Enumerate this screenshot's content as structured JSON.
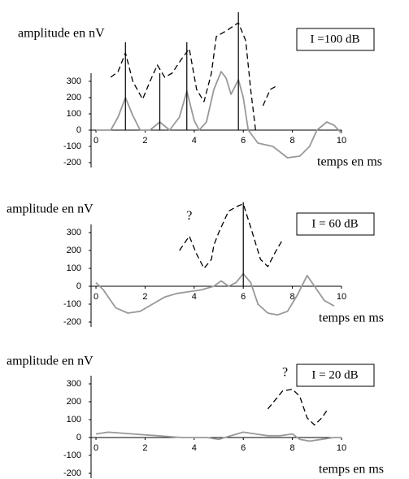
{
  "chart_data": [
    {
      "type": "line",
      "ylabel": "amplitude en nV",
      "xlabel": "temps en ms",
      "box_label": "I =100 dB",
      "xlim": [
        -0.2,
        10
      ],
      "ylim": [
        -250,
        700
      ],
      "xticks": [
        0,
        2,
        4,
        6,
        8,
        10
      ],
      "yticks": [
        -200,
        -100,
        0,
        100,
        200,
        300
      ],
      "series": [
        {
          "color": "#999999",
          "dash": false,
          "x": [
            0,
            0.6,
            0.9,
            1.2,
            1.5,
            1.8,
            2.2,
            2.6,
            3.0,
            3.4,
            3.7,
            4.0,
            4.2,
            4.5,
            4.8,
            5.1,
            5.3,
            5.5,
            5.8,
            6.0,
            6.2,
            6.6,
            7.2,
            7.8,
            8.3,
            8.7,
            9.0,
            9.4,
            9.7,
            10
          ],
          "values": [
            0,
            0,
            80,
            200,
            90,
            0,
            0,
            50,
            0,
            80,
            240,
            60,
            0,
            50,
            250,
            360,
            320,
            220,
            310,
            200,
            0,
            -80,
            -100,
            -170,
            -160,
            -100,
            0,
            50,
            30,
            -20
          ]
        },
        {
          "color": "#000000",
          "dash": true,
          "x": [
            0.6,
            0.9,
            1.2,
            1.5,
            1.9,
            2.2,
            2.5,
            2.8,
            3.1,
            3.5,
            3.8,
            4.1,
            4.4,
            4.7,
            4.9,
            5.3,
            5.8,
            6.1,
            6.3,
            6.5,
            6.6,
            6.8,
            7.1,
            7.4
          ],
          "values": [
            325,
            360,
            475,
            300,
            190,
            300,
            400,
            325,
            350,
            440,
            500,
            250,
            175,
            350,
            575,
            610,
            660,
            550,
            250,
            0,
            null,
            150,
            250,
            275
          ]
        }
      ],
      "vlines": [
        {
          "x": 1.2,
          "y": 540
        },
        {
          "x": 2.6,
          "y": 350
        },
        {
          "x": 3.7,
          "y": 540
        },
        {
          "x": 5.8,
          "y": 725
        }
      ]
    },
    {
      "type": "line",
      "ylabel": "amplitude en nV",
      "xlabel": "temps en ms",
      "box_label": "I = 60 dB",
      "xlim": [
        -0.2,
        10
      ],
      "ylim": [
        -250,
        500
      ],
      "xticks": [
        0,
        2,
        4,
        6,
        8,
        10
      ],
      "yticks": [
        -200,
        -100,
        0,
        100,
        200,
        300
      ],
      "series": [
        {
          "color": "#999999",
          "dash": false,
          "x": [
            0,
            0.3,
            0.8,
            1.3,
            1.8,
            2.3,
            2.8,
            3.3,
            3.8,
            4.3,
            4.8,
            5.1,
            5.4,
            5.7,
            6.0,
            6.3,
            6.6,
            7.0,
            7.4,
            7.8,
            8.2,
            8.6,
            8.9,
            9.3,
            9.7
          ],
          "values": [
            20,
            -20,
            -120,
            -150,
            -140,
            -100,
            -60,
            -40,
            -30,
            -20,
            0,
            30,
            0,
            20,
            70,
            20,
            -100,
            -150,
            -160,
            -140,
            -50,
            60,
            0,
            -80,
            -110
          ]
        },
        {
          "color": "#000000",
          "dash": true,
          "x": [
            3.4,
            3.8,
            4.1,
            4.4,
            4.7,
            4.8,
            5.0,
            5.4,
            5.8,
            6.0,
            6.3,
            6.7,
            7.0,
            7.3,
            7.6
          ],
          "values": [
            200,
            280,
            180,
            100,
            150,
            230,
            300,
            420,
            450,
            460,
            330,
            150,
            110,
            190,
            260
          ]
        }
      ],
      "vlines": [
        {
          "x": 6.0,
          "y": 470
        }
      ],
      "annotations": [
        {
          "text": "?",
          "x": 3.8,
          "y": 390
        }
      ]
    },
    {
      "type": "line",
      "ylabel": "amplitude en nV",
      "xlabel": "temps en ms",
      "box_label": "I = 20 dB",
      "xlim": [
        -0.2,
        10
      ],
      "ylim": [
        -250,
        450
      ],
      "xticks": [
        0,
        2,
        4,
        6,
        8,
        10
      ],
      "yticks": [
        -200,
        -100,
        0,
        100,
        200,
        300
      ],
      "series": [
        {
          "color": "#999999",
          "dash": false,
          "x": [
            0,
            0.5,
            1.5,
            2.5,
            3.5,
            4.5,
            5.0,
            5.5,
            6.0,
            6.5,
            7.0,
            7.5,
            8.0,
            8.3,
            8.7,
            9.2,
            9.7,
            10
          ],
          "values": [
            20,
            30,
            20,
            10,
            0,
            0,
            -10,
            10,
            30,
            20,
            10,
            10,
            20,
            -10,
            -20,
            -10,
            0,
            0
          ]
        },
        {
          "color": "#000000",
          "dash": true,
          "x": [
            7.0,
            7.3,
            7.6,
            8.0,
            8.3,
            8.6,
            8.9,
            9.2,
            9.4
          ],
          "values": [
            160,
            210,
            260,
            270,
            230,
            110,
            70,
            110,
            150
          ]
        }
      ],
      "annotations": [
        {
          "text": "?",
          "x": 7.7,
          "y": 360
        }
      ]
    }
  ]
}
